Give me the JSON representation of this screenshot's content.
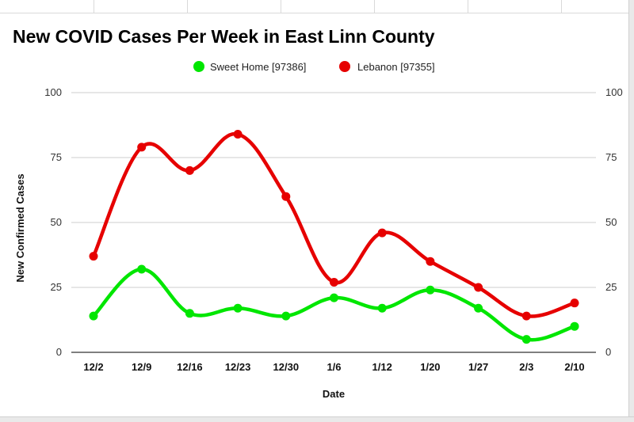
{
  "chart_data": {
    "type": "line",
    "title": "New COVID Cases Per Week in East Linn County",
    "xlabel": "Date",
    "ylabel": "New Confirmed Cases",
    "ylim": [
      0,
      100
    ],
    "yticks": [
      0,
      25,
      50,
      75,
      100
    ],
    "grid": true,
    "smooth": true,
    "legend_position": "top",
    "categories": [
      "12/2",
      "12/9",
      "12/16",
      "12/23",
      "12/30",
      "1/6",
      "1/12",
      "1/20",
      "1/27",
      "2/3",
      "2/10"
    ],
    "series": [
      {
        "name": "Sweet Home [97386]",
        "color": "#00e600",
        "values": [
          14,
          32,
          15,
          17,
          14,
          21,
          17,
          24,
          17,
          5,
          10
        ]
      },
      {
        "name": "Lebanon [97355]",
        "color": "#e60000",
        "values": [
          37,
          79,
          70,
          84,
          60,
          27,
          46,
          35,
          25,
          14,
          19
        ]
      }
    ]
  }
}
